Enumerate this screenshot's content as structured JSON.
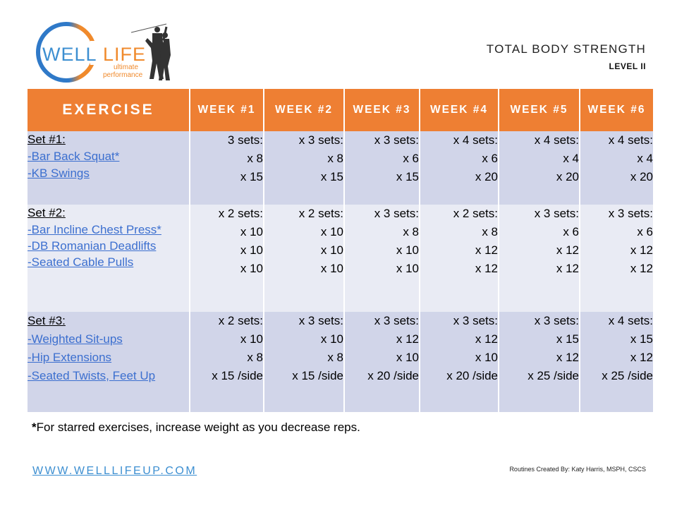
{
  "logo": {
    "word_left": "WELL",
    "word_right": "LIFE",
    "tagline_1": "ultimate",
    "tagline_2": "performance",
    "colors": {
      "blue": "#3d8fd1",
      "orange": "#f08a2c"
    }
  },
  "header": {
    "title": "TOTAL BODY STRENGTH",
    "level": "LEVEL II"
  },
  "table": {
    "header_color": "#ee7f33",
    "row_colors": [
      "#d1d5e9",
      "#e9ebf4",
      "#d1d5e9"
    ],
    "link_color": "#3c6fcf",
    "columns": [
      "EXERCISE",
      "WEEK #1",
      "WEEK #2",
      "WEEK #3",
      "WEEK #4",
      "WEEK #5",
      "WEEK #6"
    ],
    "rows": [
      {
        "set_label": "Set #1:",
        "exercises": [
          "-Bar Back Squat*",
          "-KB Swings"
        ],
        "weeks": [
          [
            "3 sets:",
            "x 8",
            "x 15"
          ],
          [
            "x 3 sets:",
            "x 8",
            "x 15"
          ],
          [
            "x 3 sets:",
            "x 6",
            "x 15"
          ],
          [
            "x 4 sets:",
            "x 6",
            "x 20"
          ],
          [
            "x 4 sets:",
            "x 4",
            "x 20"
          ],
          [
            "x 4 sets:",
            "x 4",
            "x 20"
          ]
        ]
      },
      {
        "set_label": "Set #2:",
        "exercises": [
          "-Bar Incline Chest Press*",
          "-DB Romanian Deadlifts",
          "-Seated Cable Pulls"
        ],
        "weeks": [
          [
            "x 2 sets:",
            "x 10",
            "x 10",
            "x 10"
          ],
          [
            "x 2 sets:",
            "x 10",
            "x 10",
            "x 10"
          ],
          [
            "x 3 sets:",
            "x 8",
            "x 10",
            "x 10"
          ],
          [
            "x 2 sets:",
            "x 8",
            "x 12",
            "x 12"
          ],
          [
            "x 3 sets:",
            "x 6",
            "x 12",
            "x 12"
          ],
          [
            "x 3 sets:",
            "x 6",
            "x 12",
            "x 12"
          ]
        ]
      },
      {
        "set_label": "Set #3:",
        "exercises": [
          "-Weighted Sit-ups",
          "-Hip Extensions",
          "-Seated Twists, Feet Up"
        ],
        "weeks": [
          [
            "x 2 sets:",
            "x 10",
            "x 8",
            "x 15 /side"
          ],
          [
            "x 3 sets:",
            "x 10",
            "x 8",
            "x 15 /side"
          ],
          [
            "x 3 sets:",
            "x 12",
            "x 10",
            "x 20 /side"
          ],
          [
            "x 3 sets:",
            "x 12",
            "x 10",
            "x 20 /side"
          ],
          [
            "x 3 sets:",
            "x 15",
            "x 12",
            "x 25 /side"
          ],
          [
            "x 4 sets:",
            "x 15",
            "x 12",
            "x 25 /side"
          ]
        ]
      }
    ]
  },
  "note": {
    "star": "*",
    "text": "For starred exercises, increase weight as you decrease reps."
  },
  "footer": {
    "website": "WWW.WELLLIFEUP.COM",
    "credit": "Routines Created By: Katy Harris, MSPH, CSCS"
  }
}
